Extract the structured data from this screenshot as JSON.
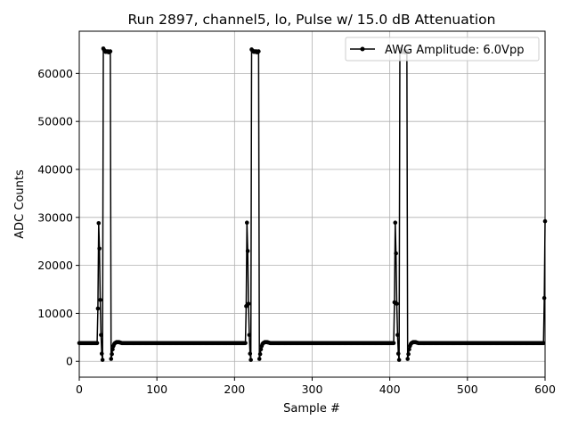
{
  "chart_data": {
    "type": "line",
    "title": "Run 2897, channel5, lo, Pulse w/ 15.0 dB Attenuation",
    "xlabel": "Sample #",
    "ylabel": "ADC Counts",
    "xlim": [
      0,
      600
    ],
    "ylim": [
      -3300,
      68800
    ],
    "xticks": [
      0,
      100,
      200,
      300,
      400,
      500,
      600
    ],
    "yticks": [
      0,
      10000,
      20000,
      30000,
      40000,
      50000,
      60000
    ],
    "grid": true,
    "legend_position": "top-right",
    "baseline": 3800,
    "series": [
      {
        "name": "AWG Amplitude: 6.0Vpp",
        "color": "#000000",
        "marker": "circle",
        "pulses": [
          {
            "start": 24,
            "values": [
              11000,
              28800,
              23500,
              12800,
              5500,
              1600,
              300,
              65200,
              64900,
              64600,
              64500,
              64600,
              64500,
              64600,
              64400,
              64500,
              64600,
              500,
              1500,
              2500,
              3200,
              3600,
              3800,
              3900,
              4000,
              4000,
              4000,
              4000,
              3950,
              3900,
              3850
            ]
          },
          {
            "start": 215,
            "values": [
              11500,
              28900,
              23000,
              12000,
              5500,
              1600,
              300,
              65000,
              64800,
              64600,
              64500,
              64600,
              64500,
              64600,
              64400,
              64500,
              64600,
              500,
              1500,
              2500,
              3200,
              3600,
              3800,
              3900,
              4000,
              4000,
              4000,
              4000,
              3950,
              3900,
              3850
            ]
          },
          {
            "start": 406,
            "values": [
              12300,
              28900,
              22500,
              12000,
              5500,
              1600,
              300,
              65000,
              64800,
              64600,
              64500,
              64600,
              64500,
              64600,
              64400,
              64500,
              64600,
              500,
              1500,
              2500,
              3200,
              3600,
              3800,
              3900,
              4000,
              4000,
              4000,
              4000,
              3950,
              3900,
              3850
            ]
          },
          {
            "start": 599,
            "values": [
              13200,
              29200
            ]
          }
        ]
      }
    ]
  }
}
